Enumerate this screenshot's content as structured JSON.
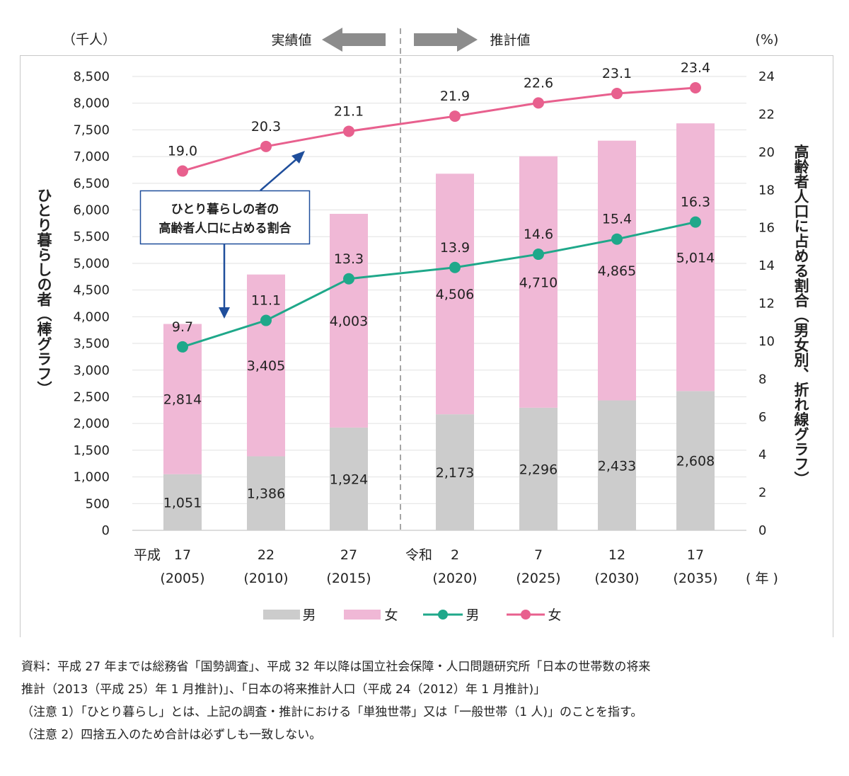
{
  "chart_data": {
    "type": "bar",
    "categories": [
      {
        "era": "平成",
        "year": "17",
        "western": "(2005)"
      },
      {
        "era": "",
        "year": "22",
        "western": "(2010)"
      },
      {
        "era": "",
        "year": "27",
        "western": "(2015)"
      },
      {
        "era": "令和",
        "year": "2",
        "western": "(2020)"
      },
      {
        "era": "",
        "year": "7",
        "western": "(2025)"
      },
      {
        "era": "",
        "year": "12",
        "western": "(2030)"
      },
      {
        "era": "",
        "year": "17",
        "western": "(2035)"
      }
    ],
    "bar_series": [
      {
        "name": "男",
        "color": "#cccccc",
        "values": [
          1051,
          1386,
          1924,
          2173,
          2296,
          2433,
          2608
        ],
        "labels": [
          "1,051",
          "1,386",
          "1,924",
          "2,173",
          "2,296",
          "2,433",
          "2,608"
        ]
      },
      {
        "name": "女",
        "color": "#f0b8d6",
        "values": [
          2814,
          3405,
          4003,
          4506,
          4710,
          4865,
          5014
        ],
        "labels": [
          "2,814",
          "3,405",
          "4,003",
          "4,506",
          "4,710",
          "4,865",
          "5,014"
        ]
      }
    ],
    "line_series": [
      {
        "name": "男",
        "color": "#1fa88a",
        "values": [
          9.7,
          11.1,
          13.3,
          13.9,
          14.6,
          15.4,
          16.3
        ],
        "labels": [
          "9.7",
          "11.1",
          "13.3",
          "13.9",
          "14.6",
          "15.4",
          "16.3"
        ]
      },
      {
        "name": "女",
        "color": "#e8608e",
        "values": [
          19.0,
          20.3,
          21.1,
          21.9,
          22.6,
          23.1,
          23.4
        ],
        "labels": [
          "19.0",
          "20.3",
          "21.1",
          "21.9",
          "22.6",
          "23.1",
          "23.4"
        ]
      }
    ],
    "left_axis": {
      "unit": "（千人）",
      "label": "ひとり暮らしの者（棒グラフ）",
      "ylim": [
        0,
        8500
      ],
      "ticks": [
        "0",
        "500",
        "1,000",
        "1,500",
        "2,000",
        "2,500",
        "3,000",
        "3,500",
        "4,000",
        "4,500",
        "5,000",
        "5,500",
        "6,000",
        "6,500",
        "7,000",
        "7,500",
        "8,000",
        "8,500"
      ]
    },
    "right_axis": {
      "unit": "(%)",
      "label": "高齢者人口に占める割合（男女別、折れ線グラフ）",
      "ylim": [
        0,
        24
      ],
      "ticks": [
        "0",
        "2",
        "4",
        "6",
        "8",
        "10",
        "12",
        "14",
        "16",
        "18",
        "20",
        "22",
        "24"
      ]
    },
    "x_unit": "( 年 )",
    "divider": {
      "left_label": "実績値",
      "right_label": "推計値"
    },
    "annotation": [
      "ひとり暮らしの者の",
      "高齢者人口に占める割合"
    ],
    "grid": true,
    "legend_position": "bottom"
  },
  "notes": [
    "資料：平成 27 年までは総務省「国勢調査」、平成 32 年以降は国立社会保障・人口問題研究所「日本の世帯数の将来",
    "推計（2013（平成 25）年 1 月推計)」、「日本の将来推計人口（平成 24（2012）年 1 月推計)」",
    "（注意 1）「ひとり暮らし」とは、上記の調査・推計における「単独世帯」又は「一般世帯（1 人)」のことを指す。",
    "（注意 2）四捨五入のため合計は必ずしも一致しない。"
  ]
}
